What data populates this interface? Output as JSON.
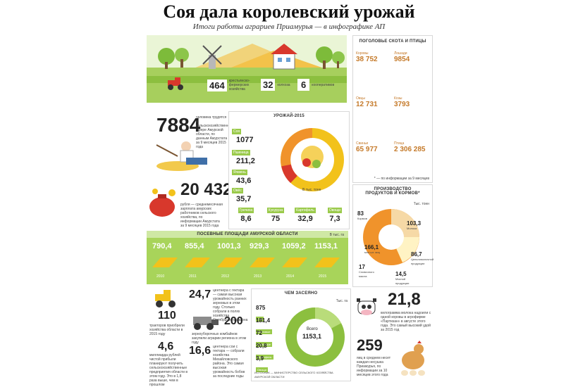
{
  "header": {
    "title": "Соя дала королевский урожай",
    "subtitle": "Итоги работы аграриев Приамурья — в инфографике АП"
  },
  "farm": {
    "stats": [
      {
        "value": "464",
        "label": "крестьянско-фермерских хозяйства"
      },
      {
        "value": "32",
        "label": "колхоза"
      },
      {
        "value": "6",
        "label": "кооперативов"
      }
    ]
  },
  "workers": {
    "value": "7884",
    "label": "человека трудятся в сельскохозяйственной сфере Амурской области, по данным Амурстата за 9 месяцев 2015 года"
  },
  "salary": {
    "value": "20 432",
    "label": "рубля — среднемесячная зарплата амурских работников сельского хозяйства, по информации Амурстата за 9 месяцев 2015 года"
  },
  "harvest": {
    "title": "УРОЖАЙ-2015",
    "unit": "В тыс. тонн",
    "items": [
      {
        "name": "Соя",
        "value": "1077"
      },
      {
        "name": "Пшеница",
        "value": "211,2"
      },
      {
        "name": "Ячмень",
        "value": "43,6"
      },
      {
        "name": "Овёс",
        "value": "35,7"
      },
      {
        "name": "Гречиха",
        "value": "8,6"
      },
      {
        "name": "Кукуруза",
        "value": "75"
      },
      {
        "name": "Картофель",
        "value": "32,9"
      },
      {
        "name": "Овощи",
        "value": "7,3"
      }
    ]
  },
  "sown": {
    "title": "ПОСЕВНЫЕ ПЛОЩАДИ АМУРСКОЙ ОБЛАСТИ",
    "unit": "В тыс. га",
    "values": [
      "790,4",
      "855,4",
      "1001,3",
      "929,3",
      "1059,2",
      "1153,1"
    ],
    "years": [
      "2010",
      "2011",
      "2012",
      "2013",
      "2014",
      "2015"
    ]
  },
  "livestock": {
    "title": "ПОГОЛОВЬЕ СКОТА И ПТИЦЫ",
    "items": [
      {
        "name": "Коровы",
        "value": "38 752"
      },
      {
        "name": "Лошади",
        "value": "9854"
      },
      {
        "name": "Овцы",
        "value": "12 731"
      },
      {
        "name": "Козы",
        "value": "3793"
      },
      {
        "name": "Свиньи",
        "value": "65 977"
      },
      {
        "name": "Птица",
        "value": "2 306 285"
      }
    ],
    "note": "* — по информации за 9 месяцев"
  },
  "production": {
    "title": "ПРОИЗВОДСТВО ПРОДУКТОВ И КОРМОВ*",
    "unit": "Тыс. тонн",
    "items": [
      {
        "value": "83",
        "label": "Кормов"
      },
      {
        "value": "103,3",
        "label": "Молока"
      },
      {
        "value": "166,1",
        "label": "млн шт. яиц"
      },
      {
        "value": "86,7",
        "label": "Цельномолочной продукции"
      },
      {
        "value": "17",
        "label": "Сливочного масла"
      },
      {
        "value": "14,5",
        "label": "Мясной продукции"
      }
    ]
  },
  "tractors": {
    "value": "110",
    "label": "тракторов приобрели хозяйства области в 2015 году"
  },
  "yield": {
    "value": "24,7",
    "label": "центнера с гектара — самая высокая урожайность ранних зерновых в этом году. Столько собрали в полях хозяйства Октябрьского района"
  },
  "combines": {
    "value": "200",
    "label": "зерноуборочных комбайнов закупили аграрии региона в этом году"
  },
  "profit": {
    "value": "4,6",
    "label": "миллиарда рублей чистой прибыли планируют получить сельскохозяйственные предприятия области в этом году. Это в 1,8 раза выше, чем в прошлом"
  },
  "soy_yield": {
    "value": "16,6",
    "label": "центнера сои с гектара — собрали хозяйства Михайловского района. Это самая высокая урожайность бобов за последние годы"
  },
  "sown_by_crop": {
    "title": "ЧЕМ ЗАСЕЯНО",
    "unit": "Тыс. га",
    "total_label": "Всего",
    "total": "1153,1",
    "items": [
      {
        "name": "Соя",
        "value": "875"
      },
      {
        "name": "Зерновые",
        "value": "181,4"
      },
      {
        "name": "Кормовые",
        "value": "72"
      },
      {
        "name": "Картофель",
        "value": "20,8"
      },
      {
        "name": "Овощи",
        "value": "3,9"
      }
    ],
    "source": "ИСТОЧНИК — МИНИСТЕРСТВО СЕЛЬСКОГО ХОЗЯЙСТВА АМУРСКОЙ ОБЛАСТИ"
  },
  "milk_yield": {
    "value": "21,8",
    "label": "килограмма молока надоили с одной коровы в агрофирме «Партизан» в августе этого года. Это самый высокий удой за 2015 год"
  },
  "eggs": {
    "value": "259",
    "label": "яиц в среднем несет каждая несушка Приамурья, по информации за 10 месяцев этого года"
  },
  "colors": {
    "green": "#8cbf3f",
    "yellow": "#f2c21b",
    "orange": "#f0932b",
    "red": "#d8382c"
  }
}
